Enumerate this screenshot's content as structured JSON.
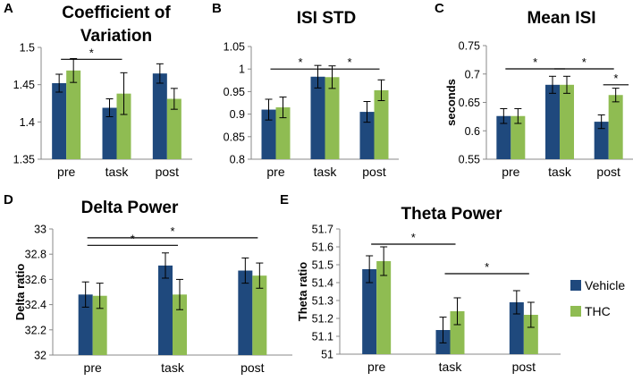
{
  "series_colors": {
    "Vehicle": "#1f497d",
    "THC": "#8fbc52"
  },
  "legend": {
    "items": [
      {
        "name": "Vehicle",
        "color": "#1f497d"
      },
      {
        "name": "THC",
        "color": "#8fbc52"
      }
    ]
  },
  "chart_data": [
    {
      "panel": "A",
      "type": "bar",
      "title_lines": [
        "Coefficient of",
        "Variation"
      ],
      "ylabel": "",
      "xlabel": "",
      "categories": [
        "pre",
        "task",
        "post"
      ],
      "ylim": [
        1.35,
        1.5
      ],
      "yticks": [
        {
          "v": 1.35,
          "t": "1.35"
        },
        {
          "v": 1.4,
          "t": "1.4"
        },
        {
          "v": 1.45,
          "t": "1.45"
        },
        {
          "v": 1.5,
          "t": "1.5"
        }
      ],
      "series": [
        {
          "name": "Vehicle",
          "values": [
            1.452,
            1.419,
            1.465
          ],
          "errors": [
            0.012,
            0.012,
            0.013
          ]
        },
        {
          "name": "THC",
          "values": [
            1.469,
            1.438,
            1.431
          ],
          "errors": [
            0.016,
            0.028,
            0.014
          ]
        }
      ],
      "significance": [
        {
          "from": 0,
          "to": 1,
          "y": 1.484,
          "label": "*"
        }
      ]
    },
    {
      "panel": "B",
      "type": "bar",
      "title_lines": [
        "ISI STD"
      ],
      "ylabel": "",
      "xlabel": "",
      "categories": [
        "pre",
        "task",
        "post"
      ],
      "ylim": [
        0.8,
        1.05
      ],
      "yticks": [
        {
          "v": 0.8,
          "t": "0.8"
        },
        {
          "v": 0.85,
          "t": "0.85"
        },
        {
          "v": 0.9,
          "t": "0.9"
        },
        {
          "v": 0.95,
          "t": "0.95"
        },
        {
          "v": 1.0,
          "t": "1"
        },
        {
          "v": 1.05,
          "t": "1.05"
        }
      ],
      "series": [
        {
          "name": "Vehicle",
          "values": [
            0.91,
            0.983,
            0.905
          ],
          "errors": [
            0.023,
            0.025,
            0.023
          ]
        },
        {
          "name": "THC",
          "values": [
            0.915,
            0.982,
            0.953
          ],
          "errors": [
            0.023,
            0.025,
            0.023
          ]
        }
      ],
      "significance": [
        {
          "from": 0,
          "to": 1,
          "y": 1.0,
          "label": "*"
        },
        {
          "from": 1,
          "to": 2,
          "y": 1.0,
          "label": "*"
        }
      ]
    },
    {
      "panel": "C",
      "type": "bar",
      "title_lines": [
        "Mean ISI"
      ],
      "ylabel": "seconds",
      "xlabel": "",
      "categories": [
        "pre",
        "task",
        "post"
      ],
      "ylim": [
        0.55,
        0.75
      ],
      "yticks": [
        {
          "v": 0.55,
          "t": "0.55"
        },
        {
          "v": 0.6,
          "t": "0.6"
        },
        {
          "v": 0.65,
          "t": "0.65"
        },
        {
          "v": 0.7,
          "t": "0.7"
        },
        {
          "v": 0.75,
          "t": "0.75"
        }
      ],
      "series": [
        {
          "name": "Vehicle",
          "values": [
            0.626,
            0.681,
            0.616
          ],
          "errors": [
            0.013,
            0.015,
            0.012
          ]
        },
        {
          "name": "THC",
          "values": [
            0.626,
            0.681,
            0.663
          ],
          "errors": [
            0.013,
            0.015,
            0.012
          ]
        }
      ],
      "significance": [
        {
          "from": 0,
          "to": 1,
          "y": 0.709,
          "label": "*"
        },
        {
          "from": 1,
          "to": 2,
          "y": 0.709,
          "label": "*"
        },
        {
          "from": 2.0,
          "to": 2.3,
          "y": 0.681,
          "label": "*"
        }
      ]
    },
    {
      "panel": "D",
      "type": "bar",
      "title_lines": [
        "Delta Power"
      ],
      "ylabel": "Delta ratio",
      "xlabel": "",
      "categories": [
        "pre",
        "task",
        "post"
      ],
      "ylim": [
        32,
        33
      ],
      "yticks": [
        {
          "v": 32,
          "t": "32"
        },
        {
          "v": 32.2,
          "t": "32.2"
        },
        {
          "v": 32.4,
          "t": "32.4"
        },
        {
          "v": 32.6,
          "t": "32.6"
        },
        {
          "v": 32.8,
          "t": "32.8"
        },
        {
          "v": 33,
          "t": "33"
        }
      ],
      "series": [
        {
          "name": "Vehicle",
          "values": [
            32.48,
            32.71,
            32.67
          ],
          "errors": [
            0.1,
            0.1,
            0.1
          ]
        },
        {
          "name": "THC",
          "values": [
            32.47,
            32.48,
            32.63
          ],
          "errors": [
            0.1,
            0.12,
            0.1
          ]
        }
      ],
      "significance": [
        {
          "from": 0,
          "to": 1,
          "y": 32.87,
          "label": "*"
        },
        {
          "from": 0,
          "to": 2,
          "y": 32.93,
          "label": "*"
        }
      ]
    },
    {
      "panel": "E",
      "type": "bar",
      "title_lines": [
        "Theta Power"
      ],
      "ylabel": "Theta ratio",
      "xlabel": "",
      "categories": [
        "pre",
        "task",
        "post"
      ],
      "ylim": [
        51,
        51.7
      ],
      "yticks": [
        {
          "v": 51,
          "t": "51"
        },
        {
          "v": 51.1,
          "t": "51.1"
        },
        {
          "v": 51.2,
          "t": "51.2"
        },
        {
          "v": 51.3,
          "t": "51.3"
        },
        {
          "v": 51.4,
          "t": "51.4"
        },
        {
          "v": 51.5,
          "t": "51.5"
        },
        {
          "v": 51.6,
          "t": "51.6"
        },
        {
          "v": 51.7,
          "t": "51.7"
        }
      ],
      "series": [
        {
          "name": "Vehicle",
          "values": [
            51.475,
            51.135,
            51.29
          ],
          "errors": [
            0.075,
            0.072,
            0.065
          ]
        },
        {
          "name": "THC",
          "values": [
            51.52,
            51.24,
            51.22
          ],
          "errors": [
            0.08,
            0.075,
            0.07
          ]
        }
      ],
      "significance": [
        {
          "from": 0,
          "to": 1,
          "y": 51.615,
          "label": "*"
        },
        {
          "from": 1,
          "to": 2,
          "y": 51.45,
          "label": "*"
        }
      ]
    }
  ]
}
